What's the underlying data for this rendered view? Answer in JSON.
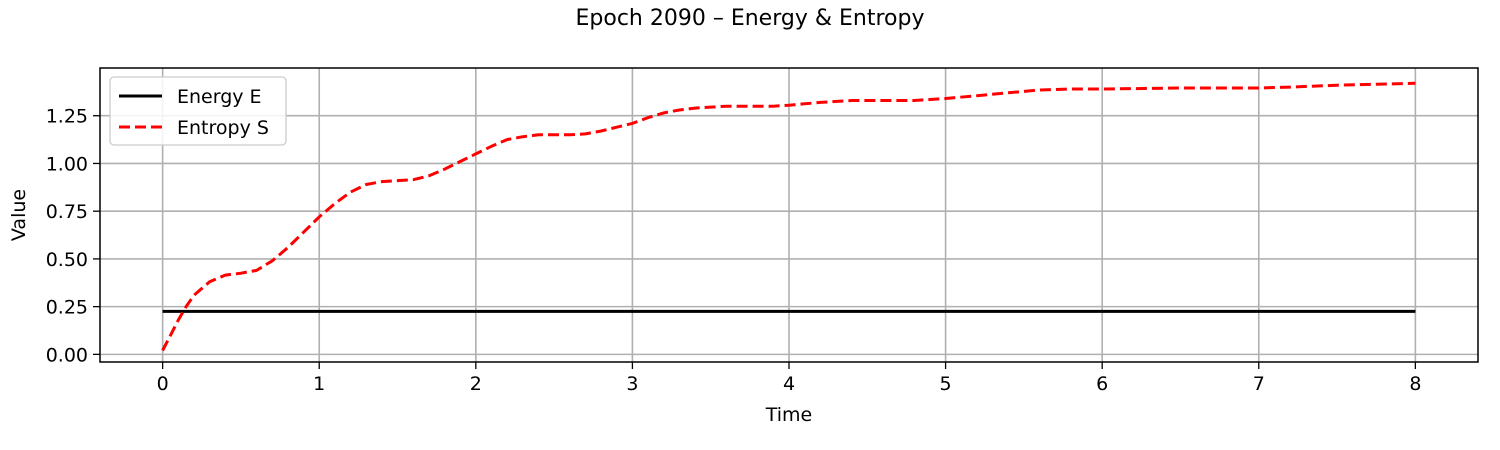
{
  "chart_data": {
    "type": "line",
    "title": "Epoch 2090 – Energy & Entropy",
    "xlabel": "Time",
    "ylabel": "Value",
    "xlim": [
      -0.4,
      8.4
    ],
    "ylim": [
      -0.04,
      1.5
    ],
    "xticks": [
      0,
      1,
      2,
      3,
      4,
      5,
      6,
      7,
      8
    ],
    "xtick_labels": [
      "0",
      "1",
      "2",
      "3",
      "4",
      "5",
      "6",
      "7",
      "8"
    ],
    "yticks": [
      0.0,
      0.25,
      0.5,
      0.75,
      1.0,
      1.25
    ],
    "ytick_labels": [
      "0.00",
      "0.25",
      "0.50",
      "0.75",
      "1.00",
      "1.25"
    ],
    "grid": true,
    "legend_position": "upper-left",
    "series": [
      {
        "name": "Energy E",
        "color": "#000000",
        "style": "solid",
        "x": [
          0,
          8
        ],
        "y": [
          0.225,
          0.225
        ]
      },
      {
        "name": "Entropy S",
        "color": "#ff0000",
        "style": "dashed",
        "x": [
          0,
          0.05,
          0.1,
          0.15,
          0.2,
          0.3,
          0.4,
          0.5,
          0.6,
          0.7,
          0.8,
          0.9,
          1.0,
          1.1,
          1.2,
          1.3,
          1.4,
          1.5,
          1.6,
          1.7,
          1.8,
          1.9,
          2.0,
          2.1,
          2.2,
          2.3,
          2.4,
          2.5,
          2.6,
          2.7,
          2.8,
          2.9,
          3.0,
          3.1,
          3.2,
          3.3,
          3.4,
          3.5,
          3.6,
          3.7,
          3.8,
          3.9,
          4.0,
          4.2,
          4.4,
          4.6,
          4.8,
          5.0,
          5.2,
          5.4,
          5.6,
          5.8,
          6.0,
          6.5,
          7.0,
          7.2,
          7.5,
          8.0
        ],
        "y": [
          0.02,
          0.1,
          0.18,
          0.25,
          0.31,
          0.38,
          0.415,
          0.425,
          0.44,
          0.49,
          0.56,
          0.64,
          0.72,
          0.79,
          0.85,
          0.89,
          0.905,
          0.91,
          0.915,
          0.935,
          0.97,
          1.01,
          1.05,
          1.09,
          1.125,
          1.14,
          1.15,
          1.15,
          1.15,
          1.155,
          1.17,
          1.19,
          1.21,
          1.24,
          1.265,
          1.28,
          1.29,
          1.295,
          1.3,
          1.3,
          1.3,
          1.3,
          1.305,
          1.32,
          1.33,
          1.33,
          1.33,
          1.34,
          1.355,
          1.37,
          1.385,
          1.39,
          1.39,
          1.395,
          1.395,
          1.4,
          1.41,
          1.42
        ]
      }
    ]
  }
}
